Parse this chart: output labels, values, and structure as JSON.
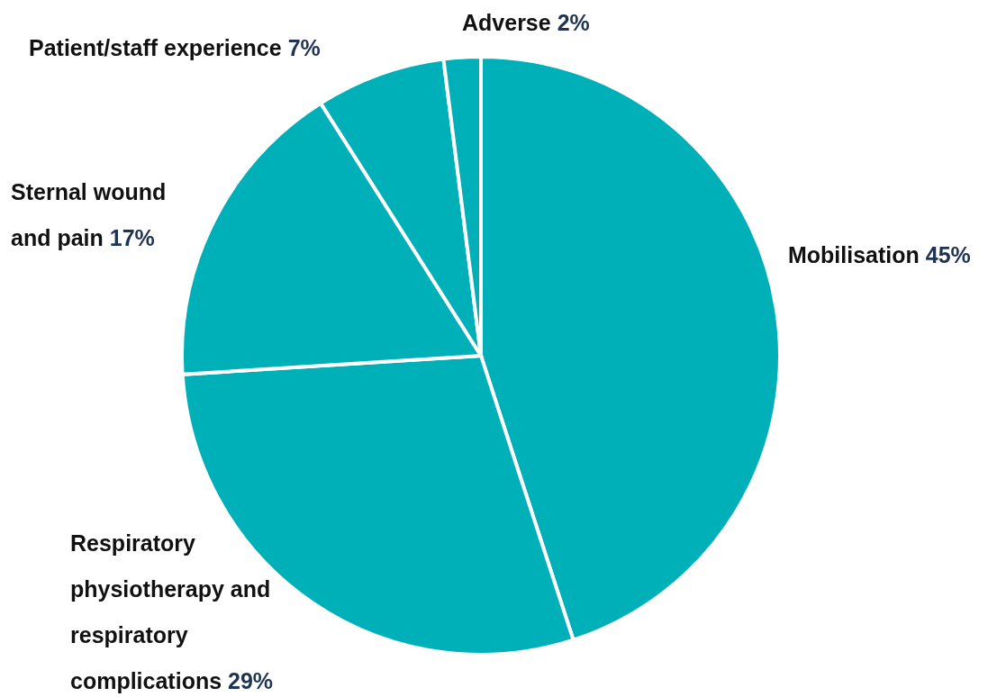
{
  "chart_data": {
    "type": "pie",
    "categories": [
      "Mobilisation",
      "Respiratory physiotherapy and respiratory complications",
      "Sternal wound and pain",
      "Patient/staff experience",
      "Adverse"
    ],
    "values": [
      45,
      29,
      17,
      7,
      2
    ],
    "value_labels": [
      "45%",
      "29%",
      "17%",
      "7%",
      "2%"
    ],
    "colors": [
      "#00b0b9",
      "#00b0b9",
      "#00b0b9",
      "#00b0b9",
      "#00b0b9"
    ]
  }
}
